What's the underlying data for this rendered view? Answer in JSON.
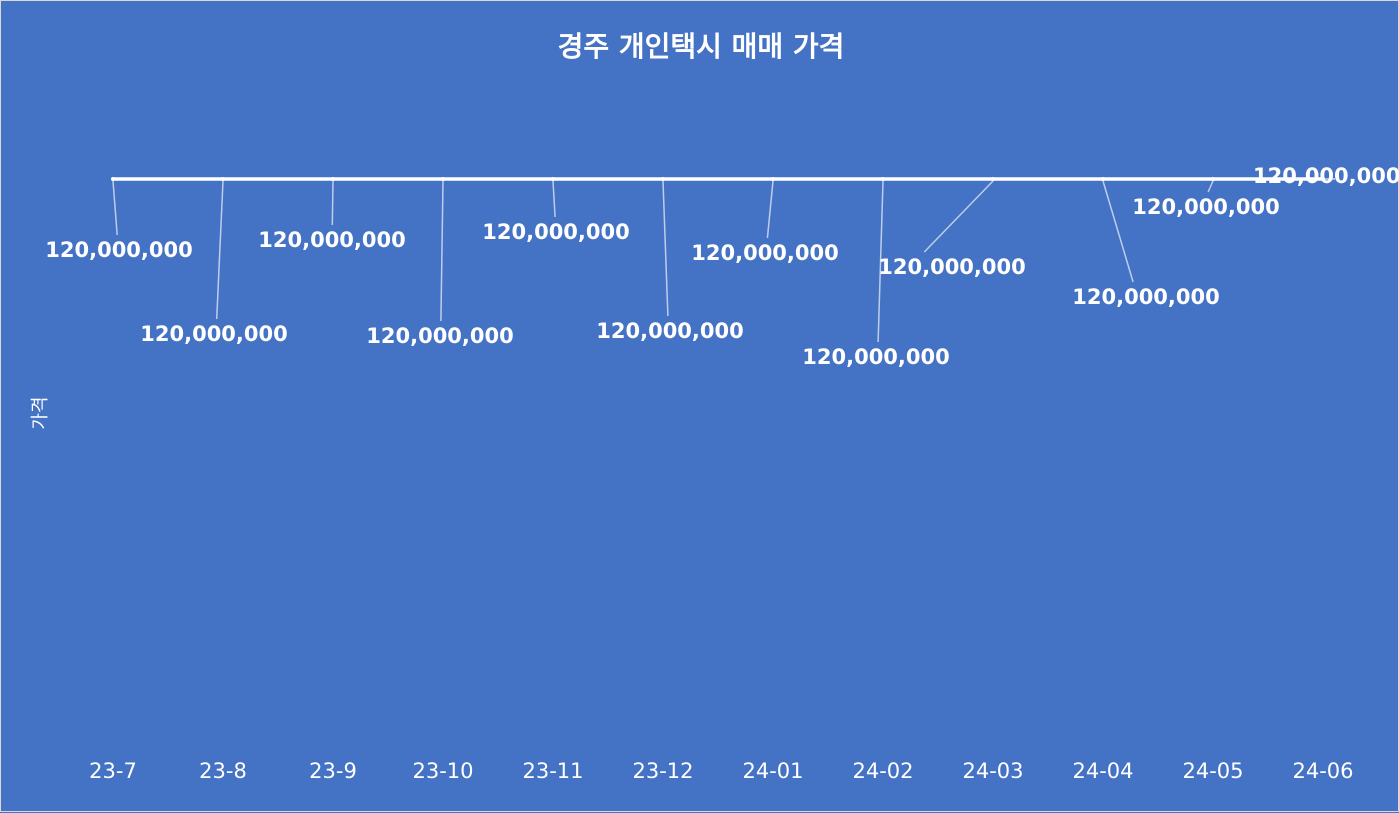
{
  "chart_data": {
    "type": "line",
    "title": "경주 개인택시 매매 가격",
    "xlabel": "",
    "ylabel": "가격",
    "categories": [
      "23-7",
      "23-8",
      "23-9",
      "23-10",
      "23-11",
      "23-12",
      "24-01",
      "24-02",
      "24-03",
      "24-04",
      "24-05",
      "24-06"
    ],
    "series": [
      {
        "values": [
          120000000,
          120000000,
          120000000,
          120000000,
          120000000,
          120000000,
          120000000,
          120000000,
          120000000,
          120000000,
          120000000,
          120000000
        ],
        "labels": [
          "120,000,000",
          "120,000,000",
          "120,000,000",
          "120,000,000",
          "120,000,000",
          "120,000,000",
          "120,000,000",
          "120,000,000",
          "120,000,000",
          "120,000,000",
          "120,000,000",
          "120,000,000"
        ],
        "color": "#ffffff"
      }
    ],
    "background": "#4472c4",
    "grid": false,
    "legend": "none",
    "drop_lines": true
  }
}
